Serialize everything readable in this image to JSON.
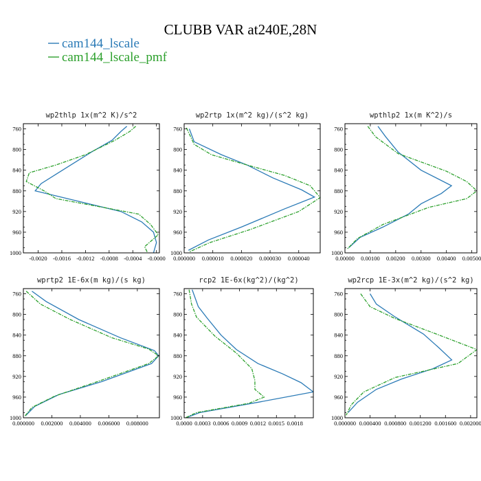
{
  "figure_title": "CLUBB VAR at240E,28N",
  "legend": [
    {
      "label": "cam144_lscale",
      "color": "#2a7ab6"
    },
    {
      "label": "cam144_lscale_pmf",
      "color": "#2ca02c"
    }
  ],
  "series_colors": [
    "#2a7ab6",
    "#2ca02c"
  ],
  "chart_data": [
    {
      "type": "line",
      "title": "wp2thlp  1x(m^2 K)/s^2",
      "xlim": [
        -0.00225,
        5e-05
      ],
      "ylim": [
        1000,
        750
      ],
      "x_tick_values": [
        -0.002,
        -0.0016,
        -0.0012,
        -0.0008,
        -0.0004,
        0.0
      ],
      "x_tick_labels": [
        "-0.0020",
        "-0.0016",
        "-0.0012",
        "-0.0008",
        "-0.0004",
        "-0.0000"
      ],
      "y_ticks": [
        760,
        800,
        840,
        880,
        920,
        960,
        1000
      ],
      "series": [
        {
          "name": "cam144_lscale",
          "points": [
            [
              -0.0005,
              755
            ],
            [
              -0.0006,
              765
            ],
            [
              -0.00075,
              782
            ],
            [
              -0.0011,
              805
            ],
            [
              -0.00145,
              830
            ],
            [
              -0.0017,
              848
            ],
            [
              -0.00195,
              866
            ],
            [
              -0.00205,
              880
            ],
            [
              -0.0014,
              898
            ],
            [
              -0.0006,
              920
            ],
            [
              -0.00025,
              940
            ],
            [
              -5e-05,
              960
            ],
            [
              0.0,
              980
            ],
            [
              -5e-05,
              1000
            ]
          ]
        },
        {
          "name": "cam144_lscale_pmf",
          "points": [
            [
              -0.00035,
              755
            ],
            [
              -0.00045,
              765
            ],
            [
              -0.0007,
              782
            ],
            [
              -0.0012,
              810
            ],
            [
              -0.0017,
              830
            ],
            [
              -0.00215,
              845
            ],
            [
              -0.0022,
              862
            ],
            [
              -0.0019,
              880
            ],
            [
              -0.0017,
              895
            ],
            [
              -0.0009,
              912
            ],
            [
              -0.0003,
              925
            ],
            [
              -0.0001,
              945
            ],
            [
              3e-05,
              965
            ],
            [
              -0.0002,
              988
            ],
            [
              -0.00015,
              1000
            ]
          ]
        }
      ]
    },
    {
      "type": "line",
      "title": "wp2rtp  1x(m^2 kg)/(s^2 kg)",
      "xlim": [
        0.0,
        4.75e-05
      ],
      "ylim": [
        1000,
        750
      ],
      "x_tick_values": [
        0.0,
        1e-05,
        2e-05,
        3e-05,
        4e-05
      ],
      "x_tick_labels": [
        "0.000000",
        "0.000010",
        "0.000020",
        "0.000030",
        "0.000040"
      ],
      "y_ticks": [
        760,
        800,
        840,
        880,
        920,
        960,
        1000
      ],
      "series": [
        {
          "name": "cam144_lscale",
          "points": [
            [
              1.8e-06,
              760
            ],
            [
              3.5e-06,
              785
            ],
            [
              1.3e-05,
              810
            ],
            [
              2.2e-05,
              830
            ],
            [
              3.1e-05,
              855
            ],
            [
              4.1e-05,
              878
            ],
            [
              4.55e-05,
              892
            ],
            [
              3.5e-05,
              915
            ],
            [
              2e-05,
              950
            ],
            [
              8.5e-06,
              975
            ],
            [
              1.5e-06,
              995
            ]
          ]
        },
        {
          "name": "cam144_lscale_pmf",
          "points": [
            [
              8e-07,
              758
            ],
            [
              3.5e-06,
              790
            ],
            [
              9.5e-06,
              810
            ],
            [
              2.2e-05,
              830
            ],
            [
              3.5e-05,
              850
            ],
            [
              4.4e-05,
              870
            ],
            [
              4.75e-05,
              893
            ],
            [
              4e-05,
              920
            ],
            [
              2.3e-05,
              955
            ],
            [
              9e-06,
              980
            ],
            [
              1.8e-06,
              998
            ]
          ]
        }
      ]
    },
    {
      "type": "line",
      "title": "wpthlp2  1x(m K^2)/s",
      "xlim": [
        0.0,
        0.0052
      ],
      "ylim": [
        1000,
        750
      ],
      "x_tick_values": [
        0.0,
        0.001,
        0.002,
        0.003,
        0.004,
        0.005
      ],
      "x_tick_labels": [
        "0.00000",
        "0.00100",
        "0.00200",
        "0.00300",
        "0.00400",
        "0.00500"
      ],
      "y_ticks": [
        760,
        800,
        840,
        880,
        920,
        960,
        1000
      ],
      "series": [
        {
          "name": "cam144_lscale",
          "points": [
            [
              0.0013,
              755
            ],
            [
              0.0016,
              775
            ],
            [
              0.0021,
              805
            ],
            [
              0.003,
              840
            ],
            [
              0.0042,
              870
            ],
            [
              0.0038,
              885
            ],
            [
              0.003,
              905
            ],
            [
              0.0025,
              925
            ],
            [
              0.0015,
              950
            ],
            [
              0.0006,
              970
            ],
            [
              0.00015,
              990
            ]
          ]
        },
        {
          "name": "cam144_lscale_pmf",
          "points": [
            [
              0.0009,
              755
            ],
            [
              0.0012,
              775
            ],
            [
              0.0021,
              808
            ],
            [
              0.004,
              842
            ],
            [
              0.0048,
              862
            ],
            [
              0.0052,
              880
            ],
            [
              0.0048,
              895
            ],
            [
              0.0033,
              912
            ],
            [
              0.0015,
              945
            ],
            [
              0.0005,
              972
            ],
            [
              0.0001,
              992
            ]
          ]
        }
      ]
    },
    {
      "type": "line",
      "title": "wprtp2  1E-6x(m kg)/(s kg)",
      "xlim": [
        0.0,
        0.00955
      ],
      "ylim": [
        1000,
        750
      ],
      "x_tick_values": [
        0.0,
        0.002,
        0.004,
        0.006,
        0.008
      ],
      "x_tick_labels": [
        "0.000000",
        "0.002000",
        "0.004000",
        "0.006000",
        "0.008000"
      ],
      "y_ticks": [
        760,
        800,
        840,
        880,
        920,
        960,
        1000
      ],
      "series": [
        {
          "name": "cam144_lscale",
          "points": [
            [
              0.0006,
              755
            ],
            [
              0.0016,
              775
            ],
            [
              0.0039,
              810
            ],
            [
              0.0068,
              845
            ],
            [
              0.0092,
              870
            ],
            [
              0.0095,
              880
            ],
            [
              0.009,
              895
            ],
            [
              0.0055,
              930
            ],
            [
              0.0025,
              955
            ],
            [
              0.0008,
              978
            ],
            [
              0.00015,
              996
            ]
          ]
        },
        {
          "name": "cam144_lscale_pmf",
          "points": [
            [
              0.0002,
              755
            ],
            [
              0.0012,
              780
            ],
            [
              0.0033,
              810
            ],
            [
              0.0062,
              845
            ],
            [
              0.0088,
              867
            ],
            [
              0.0095,
              880
            ],
            [
              0.0088,
              895
            ],
            [
              0.0052,
              930
            ],
            [
              0.0022,
              958
            ],
            [
              0.0006,
              980
            ],
            [
              0.0001,
              997
            ]
          ]
        }
      ]
    },
    {
      "type": "line",
      "title": "rcp2  1E-6x(kg^2)/(kg^2)",
      "xlim": [
        0.0,
        0.0021
      ],
      "ylim": [
        1000,
        750
      ],
      "x_tick_values": [
        0.0,
        0.0003,
        0.0006,
        0.0009,
        0.0012,
        0.0015,
        0.0018
      ],
      "x_tick_labels": [
        "0.0000",
        "0.0003",
        "0.0006",
        "0.0009",
        "0.0012",
        "0.0015",
        "0.0018"
      ],
      "y_ticks": [
        760,
        800,
        840,
        880,
        920,
        960,
        1000
      ],
      "series": [
        {
          "name": "cam144_lscale",
          "points": [
            [
              0.00013,
              752
            ],
            [
              0.00023,
              785
            ],
            [
              0.00038,
              808
            ],
            [
              0.0006,
              840
            ],
            [
              0.00085,
              868
            ],
            [
              0.0012,
              895
            ],
            [
              0.0016,
              915
            ],
            [
              0.0019,
              932
            ],
            [
              0.0021,
              950
            ],
            [
              0.0012,
              970
            ],
            [
              0.00025,
              990
            ],
            [
              3e-05,
              1000
            ]
          ]
        },
        {
          "name": "cam144_lscale_pmf",
          "points": [
            [
              8e-05,
              752
            ],
            [
              0.00012,
              780
            ],
            [
              0.0002,
              805
            ],
            [
              0.0005,
              842
            ],
            [
              0.00085,
              875
            ],
            [
              0.0011,
              905
            ],
            [
              0.00115,
              928
            ],
            [
              0.00115,
              945
            ],
            [
              0.0013,
              960
            ],
            [
              0.00105,
              972
            ],
            [
              0.0002,
              990
            ],
            [
              2e-05,
              1000
            ]
          ]
        }
      ]
    },
    {
      "type": "line",
      "title": "wp2rcp  1E-3x(m^2 kg)/(s^2 kg)",
      "xlim": [
        0.0,
        0.0021
      ],
      "ylim": [
        1000,
        750
      ],
      "x_tick_values": [
        0.0,
        0.0004,
        0.0008,
        0.0012,
        0.0016,
        0.002
      ],
      "x_tick_labels": [
        "0.000000",
        "0.000400",
        "0.000800",
        "0.001200",
        "0.001600",
        "0.002000"
      ],
      "y_ticks": [
        760,
        800,
        840,
        880,
        920,
        960,
        1000
      ],
      "series": [
        {
          "name": "cam144_lscale",
          "points": [
            [
              0.0004,
              760
            ],
            [
              0.0005,
              780
            ],
            [
              0.0008,
              805
            ],
            [
              0.00125,
              838
            ],
            [
              0.0015,
              865
            ],
            [
              0.0017,
              888
            ],
            [
              0.0014,
              905
            ],
            [
              0.0009,
              925
            ],
            [
              0.0005,
              945
            ],
            [
              0.0002,
              970
            ],
            [
              5e-05,
              990
            ]
          ]
        },
        {
          "name": "cam144_lscale_pmf",
          "points": [
            [
              0.00025,
              760
            ],
            [
              0.0004,
              785
            ],
            [
              0.0008,
              808
            ],
            [
              0.0015,
              840
            ],
            [
              0.0021,
              868
            ],
            [
              0.0018,
              895
            ],
            [
              0.0008,
              922
            ],
            [
              0.0003,
              950
            ],
            [
              0.0001,
              975
            ],
            [
              2e-05,
              995
            ]
          ]
        }
      ]
    }
  ]
}
